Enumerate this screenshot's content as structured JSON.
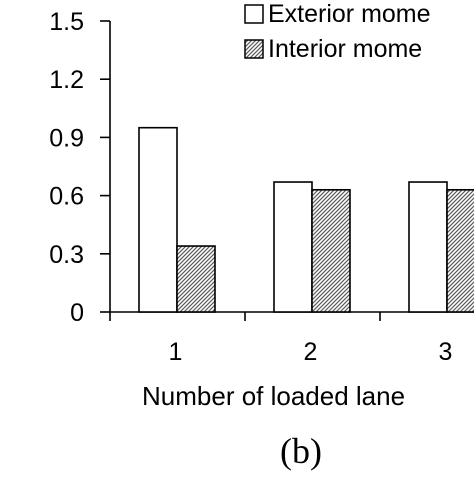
{
  "chart_data": {
    "type": "bar",
    "categories": [
      "1",
      "2",
      "3"
    ],
    "series": [
      {
        "name": "Exterior mome",
        "values": [
          0.95,
          0.67,
          0.67
        ],
        "fill": "#ffffff"
      },
      {
        "name": "Interior mome",
        "values": [
          0.34,
          0.63,
          0.63
        ],
        "fill": "hatched"
      }
    ],
    "y_ticks": [
      "0",
      "0.3",
      "0.6",
      "0.9",
      "1.2",
      "1.5"
    ],
    "ylim": [
      0,
      1.5
    ],
    "xlabel": "Number of loaded lane",
    "ylabel": "",
    "title": "",
    "grid": false,
    "legend": "top-right",
    "panel_label": "(b)",
    "colors": {
      "bar_stroke": "#000000",
      "hatch_dark": "#5a5a5a",
      "background": "#ffffff"
    }
  }
}
